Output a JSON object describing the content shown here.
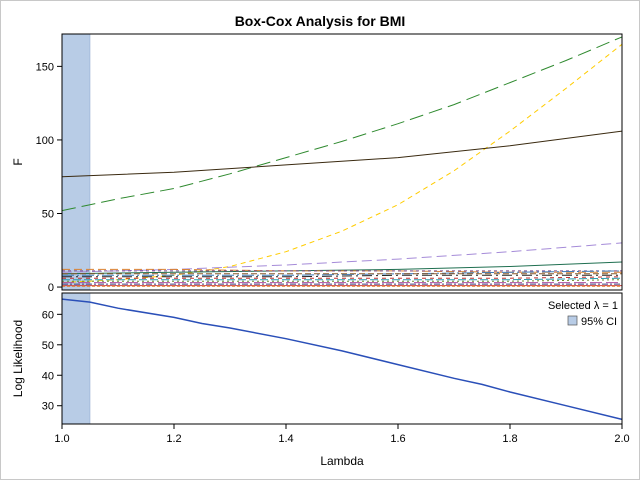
{
  "chart_data": [
    {
      "type": "line",
      "title": "Box-Cox Analysis for BMI",
      "xlabel": "Lambda",
      "ylabel": "F",
      "xlim": [
        1.0,
        2.0
      ],
      "ylim": [
        -2,
        172
      ],
      "x_ticks": [
        "1.0",
        "1.2",
        "1.4",
        "1.6",
        "1.8",
        "2.0"
      ],
      "y_ticks": [
        "0",
        "50",
        "100",
        "150"
      ],
      "ci_band": [
        1.0,
        1.05
      ],
      "grid": false,
      "series": [
        {
          "color": "#2f8a2f",
          "dash": "14 6",
          "x": [
            1.0,
            1.05,
            1.1,
            1.2,
            1.3,
            1.4,
            1.5,
            1.6,
            1.7,
            1.8,
            1.9,
            2.0
          ],
          "y": [
            52,
            56,
            60,
            67,
            77,
            88,
            99,
            111,
            124,
            139,
            154,
            170
          ]
        },
        {
          "color": "#ffcc00",
          "dash": "5 4",
          "x": [
            1.0,
            1.1,
            1.2,
            1.3,
            1.4,
            1.5,
            1.6,
            1.7,
            1.8,
            1.9,
            2.0
          ],
          "y": [
            3,
            5,
            8,
            14,
            24,
            38,
            56,
            79,
            106,
            135,
            165
          ]
        },
        {
          "color": "#3a2a10",
          "dash": "",
          "x": [
            1.0,
            1.2,
            1.4,
            1.6,
            1.8,
            2.0
          ],
          "y": [
            75,
            78,
            83,
            88,
            96,
            106
          ]
        },
        {
          "color": "#a58bd8",
          "dash": "10 5",
          "x": [
            1.0,
            1.2,
            1.4,
            1.6,
            1.8,
            2.0
          ],
          "y": [
            10,
            12,
            15,
            19,
            24,
            30
          ]
        },
        {
          "color": "#1f6f50",
          "dash": "",
          "x": [
            1.0,
            1.2,
            1.4,
            1.6,
            1.8,
            2.0
          ],
          "y": [
            9,
            10,
            11,
            12,
            14,
            17
          ]
        },
        {
          "color": "#d98030",
          "dash": "8 4",
          "x": [
            1.0,
            1.2,
            1.4,
            1.6,
            1.8,
            2.0
          ],
          "y": [
            12,
            12,
            11,
            11,
            10,
            10
          ]
        },
        {
          "color": "#7a4a8a",
          "dash": "3 3",
          "x": [
            1.0,
            1.2,
            1.4,
            1.6,
            1.8,
            2.0
          ],
          "y": [
            11,
            11,
            11,
            11,
            11,
            11
          ]
        },
        {
          "color": "#3c7ab8",
          "dash": "12 3 2 3",
          "x": [
            1.0,
            1.2,
            1.4,
            1.6,
            1.8,
            2.0
          ],
          "y": [
            8,
            8,
            8,
            9,
            10,
            11
          ]
        },
        {
          "color": "#8a5a2a",
          "dash": "6 3",
          "x": [
            1.0,
            1.2,
            1.4,
            1.6,
            1.8,
            2.0
          ],
          "y": [
            9,
            9,
            9,
            9,
            9,
            9
          ]
        },
        {
          "color": "#222222",
          "dash": "10 4 2 4",
          "x": [
            1.0,
            1.2,
            1.4,
            1.6,
            1.8,
            2.0
          ],
          "y": [
            7,
            7,
            7,
            8,
            8,
            8
          ]
        },
        {
          "color": "#c03030",
          "dash": "4 4",
          "x": [
            1.0,
            1.2,
            1.4,
            1.6,
            1.8,
            2.0
          ],
          "y": [
            6,
            6,
            6,
            6,
            6,
            7
          ]
        },
        {
          "color": "#2a9ab0",
          "dash": "8 3",
          "x": [
            1.0,
            1.2,
            1.4,
            1.6,
            1.8,
            2.0
          ],
          "y": [
            5,
            5,
            5,
            5,
            5,
            6
          ]
        },
        {
          "color": "#6a8a2a",
          "dash": "2 3",
          "x": [
            1.0,
            1.2,
            1.4,
            1.6,
            1.8,
            2.0
          ],
          "y": [
            4,
            4,
            4,
            4,
            4,
            5
          ]
        },
        {
          "color": "#b050a0",
          "dash": "12 4",
          "x": [
            1.0,
            1.2,
            1.4,
            1.6,
            1.8,
            2.0
          ],
          "y": [
            3,
            3,
            3,
            3,
            3,
            3
          ]
        },
        {
          "color": "#404080",
          "dash": "6 2 2 2",
          "x": [
            1.0,
            1.2,
            1.4,
            1.6,
            1.8,
            2.0
          ],
          "y": [
            2,
            2,
            2,
            2,
            2,
            2
          ]
        },
        {
          "color": "#d04040",
          "dash": "",
          "x": [
            1.0,
            1.2,
            1.4,
            1.6,
            1.8,
            2.0
          ],
          "y": [
            1,
            1,
            1,
            1,
            1,
            1
          ]
        },
        {
          "color": "#e07a20",
          "dash": "3 2",
          "x": [
            1.0,
            1.2,
            1.4,
            1.6,
            1.8,
            2.0
          ],
          "y": [
            0.5,
            0.5,
            0.5,
            0.5,
            0.5,
            0.5
          ]
        }
      ]
    },
    {
      "type": "line",
      "xlabel": "Lambda",
      "ylabel": "Log Likelihood",
      "xlim": [
        1.0,
        2.0
      ],
      "ylim": [
        24,
        67
      ],
      "x_ticks": [
        "1.0",
        "1.2",
        "1.4",
        "1.6",
        "1.8",
        "2.0"
      ],
      "y_ticks": [
        "30",
        "40",
        "50",
        "60"
      ],
      "ci_band": [
        1.0,
        1.05
      ],
      "grid": false,
      "legend_position": "top-right",
      "legend": {
        "selected_label": "Selected λ = 1",
        "ci_label": "95% CI"
      },
      "series": [
        {
          "color": "#2a4fb8",
          "dash": "",
          "x": [
            1.0,
            1.05,
            1.1,
            1.2,
            1.25,
            1.3,
            1.4,
            1.5,
            1.6,
            1.7,
            1.75,
            1.8,
            1.9,
            2.0
          ],
          "y": [
            65,
            64,
            62,
            59,
            57,
            55.5,
            52,
            48,
            43.5,
            39,
            37,
            34.5,
            30,
            25.5
          ]
        }
      ]
    }
  ],
  "colors": {
    "ci_band": "#b8cce6",
    "ci_band_stroke": "#8aa5cc",
    "axis": "#000000",
    "frame": "#c8c8c8"
  }
}
